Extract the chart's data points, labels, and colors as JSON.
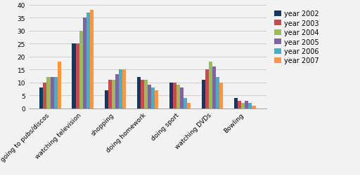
{
  "categories": [
    "going to pubs/discos",
    "watching television",
    "shopping",
    "doing homework",
    "doing sport",
    "watching DVDs",
    "Bowling"
  ],
  "years": [
    "year 2002",
    "year 2003",
    "year 2004",
    "year 2005",
    "year 2006",
    "year 2007"
  ],
  "colors": [
    "#17375e",
    "#c0504d",
    "#9bbb59",
    "#8064a2",
    "#4bacc6",
    "#f79646"
  ],
  "values": {
    "year 2002": [
      8,
      25,
      7,
      12,
      10,
      11,
      4
    ],
    "year 2003": [
      10,
      25,
      11,
      11,
      10,
      15,
      3
    ],
    "year 2004": [
      12,
      30,
      11,
      11,
      9,
      18,
      2
    ],
    "year 2005": [
      12,
      35,
      13,
      9,
      8,
      16,
      3
    ],
    "year 2006": [
      12,
      37,
      15,
      8,
      4,
      12,
      2
    ],
    "year 2007": [
      18,
      38,
      15,
      7,
      2,
      10,
      1
    ]
  },
  "ylim": [
    0,
    40
  ],
  "yticks": [
    0,
    5,
    10,
    15,
    20,
    25,
    30,
    35,
    40
  ],
  "background_color": "#f2f2f2",
  "legend_fontsize": 7,
  "tick_fontsize": 6.5,
  "bar_width": 0.11
}
